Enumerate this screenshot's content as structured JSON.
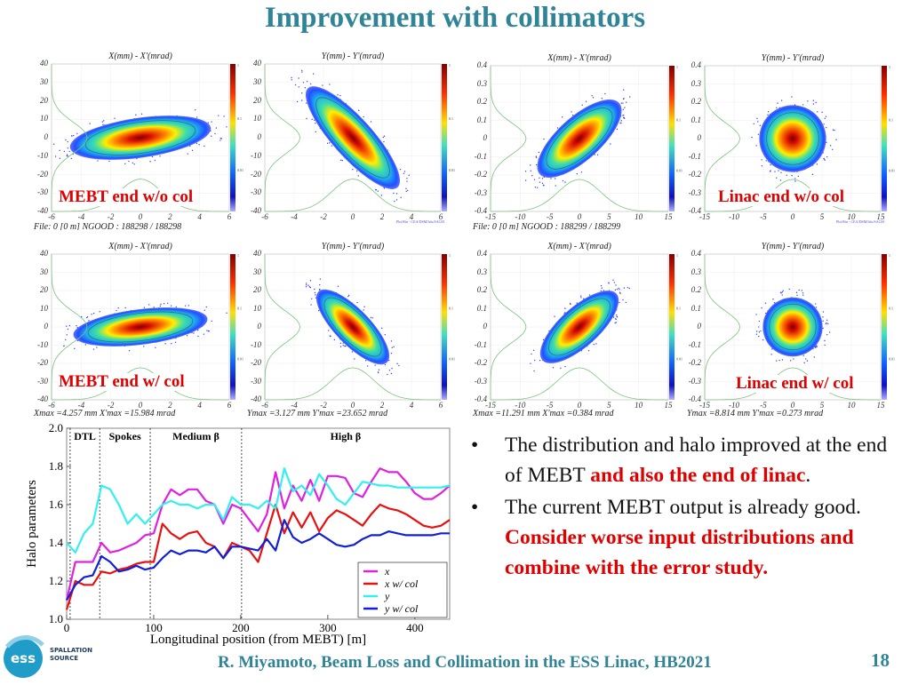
{
  "title": "Improvement with collimators",
  "panels": [
    {
      "title": "X(mm) - X'(mrad)",
      "xticks": [
        "-6",
        "-4",
        "-2",
        "0",
        "2",
        "4",
        "6"
      ],
      "yticks": [
        "40",
        "30",
        "20",
        "10",
        "0",
        "-10",
        "-20",
        "-30",
        "-40"
      ],
      "footer": "File: 0 [0 m]    NGOOD : 188298 / 188298",
      "label": "MEBT end w/o col",
      "cbar_ticks": [
        "1",
        "0.1",
        "0.01"
      ]
    },
    {
      "title": "Y(mm) - Y'(mrad)",
      "xticks": [
        "-6",
        "-4",
        "-2",
        "0",
        "2",
        "4",
        "6"
      ],
      "yticks": [
        "40",
        "30",
        "20",
        "10",
        "0",
        "-10",
        "-20",
        "-30",
        "-40"
      ],
      "footer": "",
      "label": "",
      "cbar_ticks": [
        "1",
        "0.1",
        "0.01"
      ],
      "credit": "PlotWin - CEA/DSM/Irfu/SACM"
    },
    {
      "title": "X(mm) - X'(mrad)",
      "xticks": [
        "-15",
        "-10",
        "-5",
        "0",
        "5",
        "10",
        "15"
      ],
      "yticks": [
        "0.4",
        "0.3",
        "0.2",
        "0.1",
        "0",
        "-0.1",
        "-0.2",
        "-0.3",
        "-0.4"
      ],
      "footer": "File: 0 [0 m]    NGOOD : 188299 / 188299",
      "label": "",
      "cbar_ticks": [
        "1",
        "0.1",
        "0.01"
      ]
    },
    {
      "title": "Y(mm) - Y'(mrad)",
      "xticks": [
        "-15",
        "-10",
        "-5",
        "0",
        "5",
        "10",
        "15"
      ],
      "yticks": [
        "0.4",
        "0.3",
        "0.2",
        "0.1",
        "0",
        "-0.1",
        "-0.2",
        "-0.3",
        "-0.4"
      ],
      "footer": "",
      "label": "Linac end w/o col",
      "cbar_ticks": [
        "1",
        "0.1",
        "0.01"
      ],
      "credit": "PlotWin - CEA/DSM/Irfu/SACM"
    },
    {
      "title": "X(mm) - X'(mrad)",
      "xticks": [
        "-6",
        "-4",
        "-2",
        "0",
        "2",
        "4",
        "6"
      ],
      "yticks": [
        "40",
        "30",
        "20",
        "10",
        "0",
        "-10",
        "-20",
        "-30",
        "-40"
      ],
      "footer": "Xmax =4.257 mm  X'max =15.984 mrad",
      "label": "MEBT end w/ col",
      "cbar_ticks": [
        "1",
        "0.1",
        "0.01"
      ]
    },
    {
      "title": "Y(mm) - Y'(mrad)",
      "xticks": [
        "-6",
        "-4",
        "-2",
        "0",
        "2",
        "4",
        "6"
      ],
      "yticks": [
        "40",
        "30",
        "20",
        "10",
        "0",
        "-10",
        "-20",
        "-30",
        "-40"
      ],
      "footer": "Ymax =3.127 mm  Y'max =23.652 mrad",
      "label": "",
      "cbar_ticks": [
        "1",
        "0.1",
        "0.01"
      ]
    },
    {
      "title": "X(mm) - X'(mrad)",
      "xticks": [
        "-15",
        "-10",
        "-5",
        "0",
        "5",
        "10",
        "15"
      ],
      "yticks": [
        "0.4",
        "0.3",
        "0.2",
        "0.1",
        "0",
        "-0.1",
        "-0.2",
        "-0.3",
        "-0.4"
      ],
      "footer": "Xmax =11.291 mm  X'max =0.384 mrad",
      "label": "",
      "cbar_ticks": [
        "1",
        "0.1",
        "0.01"
      ]
    },
    {
      "title": "Y(mm) - Y'(mrad)",
      "xticks": [
        "-15",
        "-10",
        "-5",
        "0",
        "5",
        "10",
        "15"
      ],
      "yticks": [
        "0.4",
        "0.3",
        "0.2",
        "0.1",
        "0",
        "-0.1",
        "-0.2",
        "-0.3",
        "-0.4"
      ],
      "footer": "Ymax =8.814 mm  Y'max =0.273 mrad",
      "label": "Linac end w/ col",
      "cbar_ticks": [
        "1",
        "0.1",
        "0.01"
      ]
    }
  ],
  "chart_data": {
    "type": "line",
    "xlabel": "Longitudinal position (from MEBT)  [m]",
    "ylabel": "Halo parameters",
    "xlim": [
      0,
      440
    ],
    "ylim": [
      1.0,
      2.0
    ],
    "xticks": [
      "0",
      "100",
      "200",
      "300",
      "400"
    ],
    "yticks": [
      "1.0",
      "1.2",
      "1.4",
      "1.6",
      "1.8",
      "2.0"
    ],
    "sections": [
      {
        "label": "DTL",
        "start": 4,
        "end": 38
      },
      {
        "label": "Spokes",
        "start": 38,
        "end": 96
      },
      {
        "label": "Medium β",
        "start": 96,
        "end": 201
      },
      {
        "label": "High β",
        "start": 201,
        "end": 440
      }
    ],
    "legend_position": "bottom-right",
    "x": [
      0,
      10,
      20,
      30,
      40,
      50,
      60,
      70,
      80,
      90,
      100,
      110,
      120,
      130,
      140,
      150,
      160,
      170,
      180,
      190,
      200,
      210,
      220,
      230,
      240,
      250,
      260,
      270,
      280,
      290,
      300,
      310,
      320,
      330,
      340,
      350,
      360,
      370,
      380,
      390,
      400,
      410,
      420,
      430,
      440
    ],
    "series": [
      {
        "name": "x",
        "color": "#e020e0",
        "values": [
          1.1,
          1.3,
          1.3,
          1.3,
          1.4,
          1.35,
          1.36,
          1.38,
          1.4,
          1.44,
          1.45,
          1.6,
          1.68,
          1.65,
          1.68,
          1.68,
          1.62,
          1.6,
          1.5,
          1.6,
          1.58,
          1.52,
          1.46,
          1.55,
          1.77,
          1.58,
          1.7,
          1.62,
          1.73,
          1.62,
          1.75,
          1.75,
          1.74,
          1.66,
          1.64,
          1.72,
          1.79,
          1.77,
          1.77,
          1.72,
          1.66,
          1.63,
          1.63,
          1.66,
          1.7
        ]
      },
      {
        "name": "x w/ col",
        "color": "#e81010",
        "values": [
          1.05,
          1.2,
          1.18,
          1.18,
          1.25,
          1.24,
          1.26,
          1.27,
          1.29,
          1.3,
          1.3,
          1.5,
          1.45,
          1.42,
          1.45,
          1.46,
          1.4,
          1.38,
          1.32,
          1.4,
          1.38,
          1.36,
          1.3,
          1.45,
          1.6,
          1.45,
          1.56,
          1.48,
          1.56,
          1.46,
          1.53,
          1.57,
          1.55,
          1.52,
          1.49,
          1.55,
          1.6,
          1.58,
          1.57,
          1.55,
          1.52,
          1.49,
          1.48,
          1.49,
          1.52
        ]
      },
      {
        "name": "y",
        "color": "#30f0f0",
        "values": [
          1.4,
          1.35,
          1.45,
          1.5,
          1.7,
          1.68,
          1.6,
          1.5,
          1.55,
          1.5,
          1.55,
          1.6,
          1.62,
          1.6,
          1.6,
          1.58,
          1.6,
          1.6,
          1.52,
          1.64,
          1.6,
          1.6,
          1.58,
          1.62,
          1.58,
          1.79,
          1.67,
          1.7,
          1.65,
          1.76,
          1.7,
          1.63,
          1.6,
          1.66,
          1.72,
          1.71,
          1.7,
          1.7,
          1.69,
          1.69,
          1.69,
          1.69,
          1.69,
          1.69,
          1.7
        ]
      },
      {
        "name": "y w/ col",
        "color": "#1020d8",
        "values": [
          1.1,
          1.18,
          1.22,
          1.23,
          1.33,
          1.3,
          1.25,
          1.26,
          1.28,
          1.26,
          1.27,
          1.32,
          1.36,
          1.34,
          1.36,
          1.36,
          1.35,
          1.38,
          1.32,
          1.38,
          1.38,
          1.37,
          1.36,
          1.42,
          1.36,
          1.52,
          1.43,
          1.4,
          1.42,
          1.45,
          1.42,
          1.39,
          1.38,
          1.39,
          1.42,
          1.44,
          1.44,
          1.46,
          1.45,
          1.44,
          1.44,
          1.44,
          1.44,
          1.45,
          1.45
        ]
      }
    ]
  },
  "bullets": [
    {
      "normal": "The distribution and halo improved at the end of MEBT ",
      "emph": "and also the end of linac",
      "tail": "."
    },
    {
      "normal": "The current MEBT output is already good. ",
      "emph": "Consider worse input distributions and combine with the error study.",
      "tail": ""
    }
  ],
  "footer": "R. Miyamoto, Beam Loss and Collimation in the ESS Linac, HB2021",
  "page_number": "18",
  "logo": {
    "mark": "ess",
    "text": [
      "SPALLATION",
      "SOURCE"
    ]
  },
  "colors": {
    "title": "#2f8497",
    "emphasis": "#e00000"
  }
}
